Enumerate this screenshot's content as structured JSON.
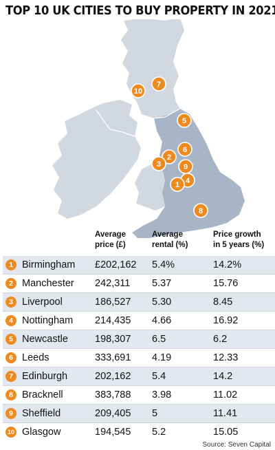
{
  "title": "TOP 10 UK CITIES TO BUY PROPERTY IN 2021",
  "colors": {
    "marker": "#ef8a1e",
    "england": "#a8b5c6",
    "other_land": "#d2d8e0",
    "row_shade": "#e3e7ee"
  },
  "columns": {
    "price": "Average\nprice (£)",
    "rental": "Average\nrental (%)",
    "growth": "Price growth\nin 5 years (%)"
  },
  "rows": [
    {
      "rank": "1",
      "city": "Birmingham",
      "price": "£202,162",
      "rental": "5.4%",
      "growth": "14.2%"
    },
    {
      "rank": "2",
      "city": "Manchester",
      "price": "242,311",
      "rental": "5.37",
      "growth": "15.76"
    },
    {
      "rank": "3",
      "city": "Liverpool",
      "price": "186,527",
      "rental": "5.30",
      "growth": "8.45"
    },
    {
      "rank": "4",
      "city": "Nottingham",
      "price": "214,435",
      "rental": "4.66",
      "growth": "16.92"
    },
    {
      "rank": "5",
      "city": "Newcastle",
      "price": "198,307",
      "rental": "6.5",
      "growth": "6.2"
    },
    {
      "rank": "6",
      "city": "Leeds",
      "price": "333,691",
      "rental": "4.19",
      "growth": "12.33"
    },
    {
      "rank": "7",
      "city": "Edinburgh",
      "price": "202,162",
      "rental": "5.4",
      "growth": "14.2"
    },
    {
      "rank": "8",
      "city": "Bracknell",
      "price": "383,788",
      "rental": "3.98",
      "growth": "11.02"
    },
    {
      "rank": "9",
      "city": "Sheffield",
      "price": "209,405",
      "rental": "5",
      "growth": "11.41"
    },
    {
      "rank": "10",
      "city": "Glasgow",
      "price": "194,545",
      "rental": "5.2",
      "growth": "15.05"
    }
  ],
  "source": "Source: Seven Capital"
}
